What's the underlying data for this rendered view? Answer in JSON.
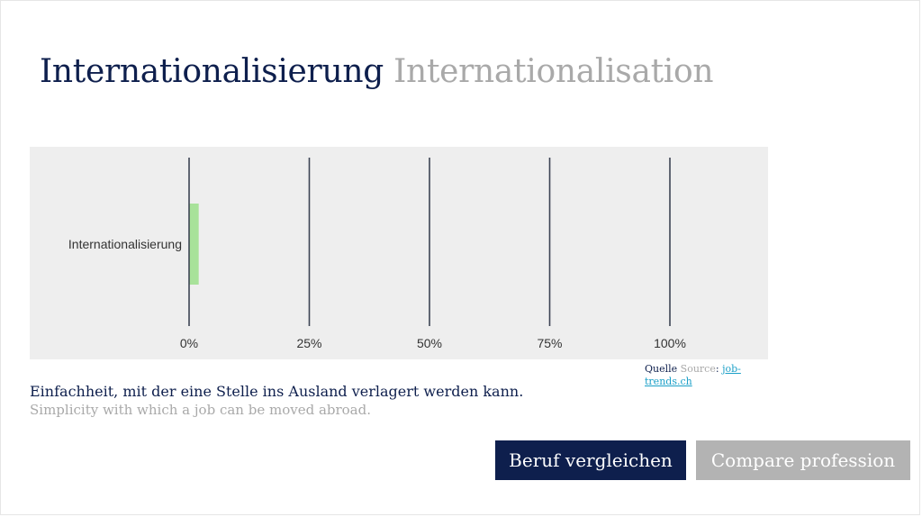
{
  "title": {
    "de": "Internationalisierung",
    "en": "Internationalisation"
  },
  "chart_data": {
    "type": "bar",
    "orientation": "horizontal",
    "categories": [
      "Internationalisierung"
    ],
    "values": [
      2
    ],
    "xlim": [
      0,
      100
    ],
    "ticks": [
      0,
      25,
      50,
      75,
      100
    ],
    "tick_labels": [
      "0%",
      "25%",
      "50%",
      "75%",
      "100%"
    ],
    "grid": "vertical",
    "colors": {
      "bar": "#a8e29a",
      "grid": "#3d4454",
      "background": "#eeeeee",
      "text": "#333333"
    }
  },
  "source": {
    "label_de": "Quelle",
    "label_en": "Source",
    "separator": ":",
    "link_text": "job-trends.ch"
  },
  "description": {
    "de": "Einfachheit, mit der eine Stelle ins Ausland verlagert werden kann.",
    "en": "Simplicity with which a job can be moved abroad."
  },
  "buttons": {
    "compare_de": "Beruf vergleichen",
    "compare_en": "Compare profession"
  },
  "theme": {
    "primary": "#0e1f4d",
    "muted": "#a9a9a9",
    "link": "#1a9fc7",
    "button_secondary": "#b3b3b3"
  }
}
